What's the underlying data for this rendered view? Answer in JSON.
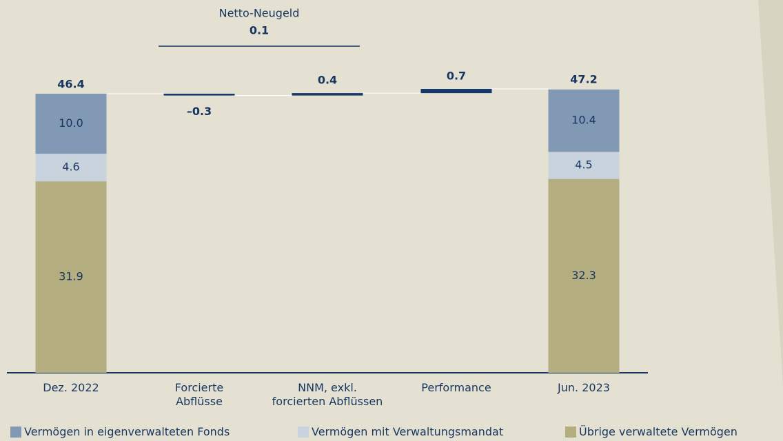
{
  "chart_data": {
    "type": "waterfall",
    "categories": [
      "Dez. 2022",
      "Forcierte\nAbflüsse",
      "NNM, exkl.\nforcierten Abflüssen",
      "Performance",
      "Jun. 2023"
    ],
    "series": [
      {
        "name": "Vermögen in eigenverwalteten Fonds",
        "color": "#8199b5",
        "values": [
          10.0,
          null,
          null,
          null,
          10.4
        ],
        "value_labels": [
          "10.0",
          null,
          null,
          null,
          "10.4"
        ]
      },
      {
        "name": "Vermögen mit Verwaltungsmandat",
        "color": "#c9d3de",
        "values": [
          4.6,
          null,
          null,
          null,
          4.5
        ],
        "value_labels": [
          "4.6",
          null,
          null,
          null,
          "4.5"
        ]
      },
      {
        "name": "Übrige verwaltete Vermögen",
        "color": "#b3ad80",
        "values": [
          31.9,
          null,
          null,
          null,
          32.3
        ],
        "value_labels": [
          "31.9",
          null,
          null,
          null,
          "32.3"
        ]
      }
    ],
    "totals": {
      "values": [
        46.4,
        null,
        null,
        null,
        47.2
      ]
    },
    "changes": {
      "color": "#17386b",
      "values": [
        null,
        -0.3,
        0.4,
        0.7,
        null
      ],
      "value_labels": [
        null,
        "–0.3",
        "0.4",
        "0.7",
        null
      ]
    },
    "annotation": {
      "text": "Netto-Neugeld",
      "value": 0.1
    }
  }
}
